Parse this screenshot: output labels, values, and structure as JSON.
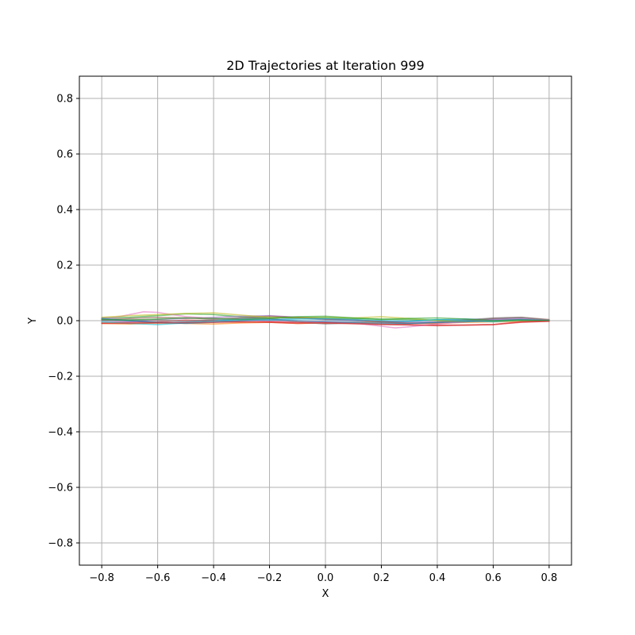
{
  "chart_data": {
    "type": "line",
    "title": "2D Trajectories at Iteration 999",
    "xlabel": "X",
    "ylabel": "Y",
    "xlim": [
      -0.88,
      0.88
    ],
    "ylim": [
      -0.88,
      0.88
    ],
    "grid": true,
    "xticks": [
      -0.8,
      -0.6,
      -0.4,
      -0.2,
      0.0,
      0.2,
      0.4,
      0.6,
      0.8
    ],
    "yticks": [
      -0.8,
      -0.6,
      -0.4,
      -0.2,
      0.0,
      0.2,
      0.4,
      0.6,
      0.8
    ],
    "xtick_labels": [
      "−0.8",
      "−0.6",
      "−0.4",
      "−0.2",
      "0.0",
      "0.2",
      "0.4",
      "0.6",
      "0.8"
    ],
    "ytick_labels": [
      "−0.8",
      "−0.6",
      "−0.4",
      "−0.2",
      "0.0",
      "0.2",
      "0.4",
      "0.6",
      "0.8"
    ],
    "series": [
      {
        "color": "#1f77b4",
        "x": [
          -0.8,
          -0.7,
          -0.6,
          -0.5,
          -0.4,
          -0.3,
          -0.2,
          -0.1,
          0.0,
          0.1,
          0.2,
          0.3,
          0.4,
          0.5,
          0.6,
          0.7,
          0.8
        ],
        "y": [
          0.005,
          0.0,
          -0.008,
          -0.005,
          0.0,
          0.006,
          0.01,
          0.008,
          0.004,
          0.0,
          -0.004,
          -0.002,
          0.003,
          0.006,
          0.004,
          0.006,
          0.0
        ]
      },
      {
        "color": "#ff7f0e",
        "x": [
          -0.8,
          -0.7,
          -0.6,
          -0.5,
          -0.4,
          -0.3,
          -0.2,
          -0.1,
          0.0,
          0.1,
          0.2,
          0.3,
          0.4,
          0.5,
          0.6,
          0.7,
          0.8
        ],
        "y": [
          -0.01,
          -0.012,
          -0.008,
          -0.01,
          -0.012,
          -0.008,
          -0.006,
          -0.01,
          -0.008,
          -0.006,
          -0.005,
          -0.008,
          -0.01,
          -0.006,
          -0.004,
          -0.003,
          0.0
        ]
      },
      {
        "color": "#2ca02c",
        "x": [
          -0.8,
          -0.7,
          -0.6,
          -0.5,
          -0.4,
          -0.3,
          -0.2,
          -0.1,
          0.0,
          0.1,
          0.2,
          0.3,
          0.4,
          0.5,
          0.6,
          0.7,
          0.8
        ],
        "y": [
          0.01,
          0.012,
          0.018,
          0.025,
          0.022,
          0.014,
          0.01,
          0.012,
          0.01,
          0.008,
          0.006,
          0.004,
          0.002,
          0.0,
          -0.002,
          0.001,
          0.0
        ]
      },
      {
        "color": "#d62728",
        "x": [
          -0.8,
          -0.7,
          -0.6,
          -0.5,
          -0.4,
          -0.3,
          -0.2,
          -0.1,
          0.0,
          0.1,
          0.2,
          0.3,
          0.4,
          0.5,
          0.6,
          0.7,
          0.8
        ],
        "y": [
          -0.008,
          -0.006,
          -0.004,
          0.002,
          0.0,
          -0.004,
          -0.006,
          -0.01,
          -0.008,
          -0.01,
          -0.012,
          -0.015,
          -0.018,
          -0.016,
          -0.014,
          -0.006,
          -0.002
        ]
      },
      {
        "color": "#9467bd",
        "x": [
          -0.8,
          -0.7,
          -0.6,
          -0.5,
          -0.4,
          -0.3,
          -0.2,
          -0.1,
          0.0,
          0.1,
          0.2,
          0.3,
          0.4,
          0.5,
          0.6,
          0.7,
          0.8
        ],
        "y": [
          0.0,
          -0.004,
          0.004,
          0.008,
          0.012,
          0.016,
          0.018,
          0.012,
          0.006,
          0.002,
          -0.002,
          -0.006,
          -0.004,
          0.002,
          0.006,
          0.01,
          0.002
        ]
      },
      {
        "color": "#8c564b",
        "x": [
          -0.8,
          -0.7,
          -0.6,
          -0.5,
          -0.4,
          -0.3,
          -0.2,
          -0.1,
          0.0,
          0.1,
          0.2,
          0.3,
          0.4,
          0.5,
          0.6,
          0.7,
          0.8
        ],
        "y": [
          0.004,
          0.008,
          0.012,
          0.01,
          0.006,
          0.01,
          0.016,
          0.012,
          0.006,
          0.004,
          -0.004,
          -0.01,
          -0.008,
          0.0,
          0.008,
          0.012,
          0.004
        ]
      },
      {
        "color": "#e377c2",
        "x": [
          -0.8,
          -0.75,
          -0.7,
          -0.65,
          -0.6,
          -0.55,
          -0.5,
          -0.4,
          -0.3,
          -0.2,
          -0.1,
          0.0,
          0.1,
          0.2,
          0.25,
          0.3,
          0.4,
          0.5,
          0.6,
          0.7,
          0.8
        ],
        "y": [
          0.01,
          0.012,
          0.022,
          0.032,
          0.03,
          0.022,
          0.015,
          0.008,
          0.004,
          -0.002,
          -0.006,
          -0.004,
          -0.008,
          -0.02,
          -0.026,
          -0.022,
          -0.012,
          -0.004,
          0.002,
          0.006,
          0.0
        ]
      },
      {
        "color": "#7f7f7f",
        "x": [
          -0.8,
          -0.7,
          -0.6,
          -0.5,
          -0.4,
          -0.3,
          -0.2,
          -0.1,
          0.0,
          0.1,
          0.2,
          0.3,
          0.4,
          0.5,
          0.6,
          0.7,
          0.8
        ],
        "y": [
          0.0,
          0.004,
          0.002,
          -0.002,
          0.004,
          0.01,
          0.008,
          -0.004,
          -0.012,
          -0.008,
          -0.012,
          -0.01,
          -0.006,
          0.002,
          0.01,
          0.012,
          0.002
        ]
      },
      {
        "color": "#bcbd22",
        "x": [
          -0.8,
          -0.7,
          -0.6,
          -0.5,
          -0.4,
          -0.3,
          -0.2,
          -0.1,
          0.0,
          0.1,
          0.2,
          0.3,
          0.4,
          0.5,
          0.6,
          0.7,
          0.8
        ],
        "y": [
          0.012,
          0.018,
          0.022,
          0.026,
          0.028,
          0.02,
          0.012,
          0.01,
          0.012,
          0.01,
          0.014,
          0.008,
          0.0,
          -0.004,
          -0.002,
          0.002,
          0.0
        ]
      },
      {
        "color": "#17becf",
        "x": [
          -0.8,
          -0.7,
          -0.6,
          -0.5,
          -0.4,
          -0.3,
          -0.2,
          -0.1,
          0.0,
          0.1,
          0.2,
          0.3,
          0.4,
          0.5,
          0.6,
          0.7,
          0.8
        ],
        "y": [
          -0.004,
          -0.01,
          -0.014,
          -0.008,
          -0.002,
          0.004,
          0.002,
          0.006,
          0.008,
          0.004,
          0.0,
          -0.002,
          0.004,
          0.0,
          -0.004,
          0.002,
          0.0
        ]
      },
      {
        "color": "#1f77b4",
        "x": [
          -0.8,
          -0.7,
          -0.6,
          -0.5,
          -0.4,
          -0.3,
          -0.2,
          -0.1,
          0.0,
          0.1,
          0.2,
          0.3,
          0.4,
          0.5,
          0.6,
          0.7,
          0.8
        ],
        "y": [
          0.008,
          0.0,
          -0.006,
          -0.01,
          -0.006,
          0.0,
          0.004,
          0.0,
          -0.004,
          -0.006,
          -0.008,
          -0.01,
          -0.006,
          -0.004,
          0.0,
          0.004,
          0.0
        ]
      },
      {
        "color": "#2ca02c",
        "x": [
          -0.8,
          -0.7,
          -0.6,
          -0.5,
          -0.4,
          -0.3,
          -0.2,
          -0.1,
          0.0,
          0.1,
          0.2,
          0.3,
          0.4,
          0.5,
          0.6,
          0.7,
          0.8
        ],
        "y": [
          0.004,
          0.002,
          0.006,
          0.01,
          0.008,
          0.004,
          0.008,
          0.014,
          0.016,
          0.01,
          0.004,
          0.008,
          0.01,
          0.006,
          0.0,
          0.002,
          0.0
        ]
      },
      {
        "color": "#d62728",
        "x": [
          -0.8,
          -0.6,
          -0.4,
          -0.2,
          0.0,
          0.2,
          0.4,
          0.5,
          0.6,
          0.7,
          0.8
        ],
        "y": [
          -0.01,
          -0.008,
          -0.006,
          -0.004,
          -0.008,
          -0.014,
          -0.016,
          -0.016,
          -0.014,
          -0.004,
          -0.002
        ]
      }
    ]
  }
}
